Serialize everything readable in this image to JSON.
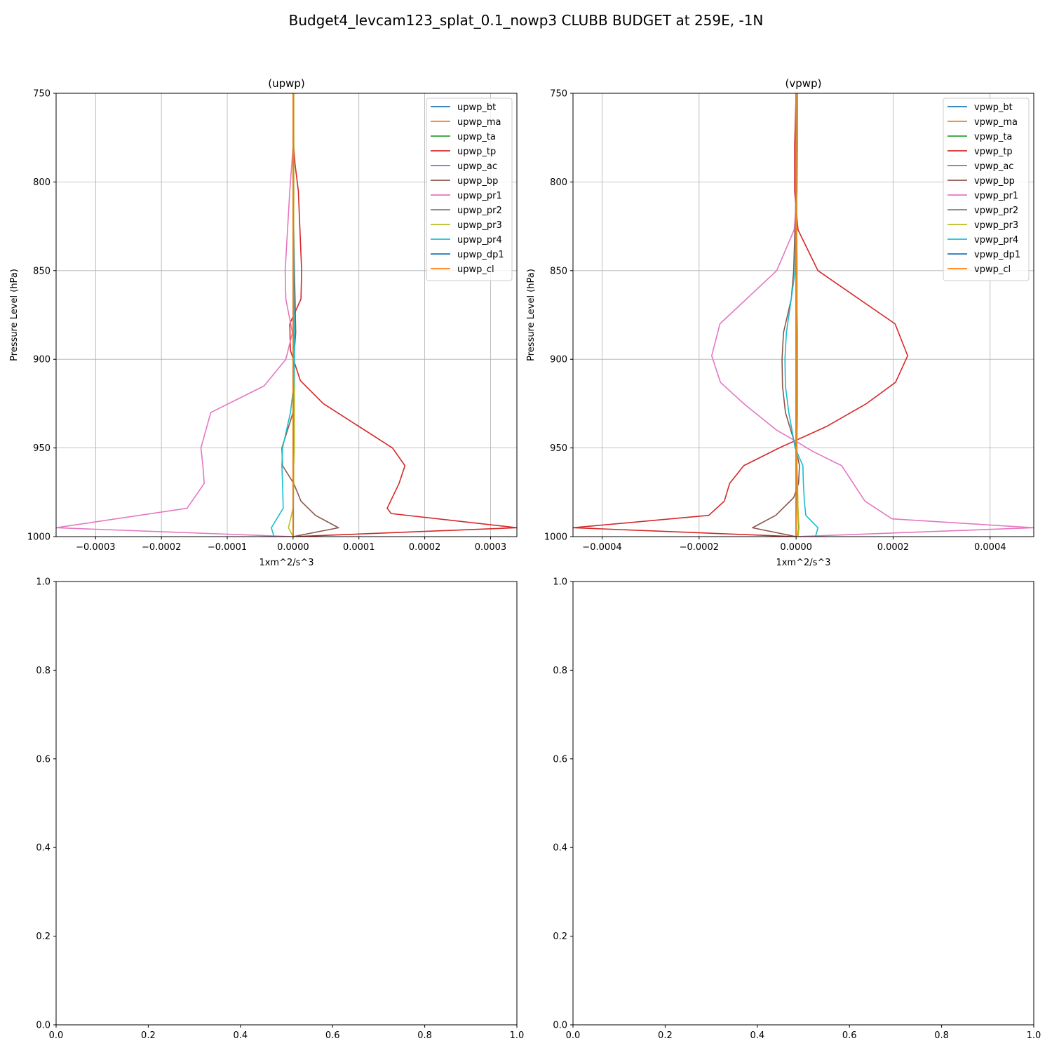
{
  "figure": {
    "suptitle": "Budget4_levcam123_splat_0.1_nowp3 CLUBB BUDGET at 259E, -1N"
  },
  "chart_data": [
    {
      "type": "line",
      "title": "(upwp)",
      "xlabel": "1xm^2/s^3",
      "ylabel": "Pressure Level (hPa)",
      "xlim": [
        -0.00036,
        0.00034
      ],
      "ylim": [
        1000,
        750
      ],
      "xticks": [
        -0.0003,
        -0.0002,
        -0.0001,
        0.0,
        0.0001,
        0.0002,
        0.0003
      ],
      "xtick_labels": [
        "−0.0003",
        "−0.0002",
        "−0.0001",
        "0.0000",
        "0.0001",
        "0.0002",
        "0.0003"
      ],
      "yticks": [
        750,
        800,
        850,
        900,
        950,
        1000
      ],
      "ytick_labels": [
        "750",
        "800",
        "850",
        "900",
        "950",
        "1000"
      ],
      "grid": true,
      "legend_position": "top-right",
      "series": [
        {
          "name": "upwp_bt",
          "color": "#1f77b4",
          "x": [
            0,
            0,
            0,
            0,
            0,
            0,
            0,
            0,
            0,
            0,
            0,
            0
          ],
          "y": [
            750,
            780,
            805,
            850,
            866,
            885,
            900,
            915,
            930,
            950,
            960,
            970
          ]
        },
        {
          "name": "upwp_ma",
          "color": "#ff7f0e",
          "x": [
            0.0,
            0.0,
            0.0,
            0.0,
            0.0,
            0.0,
            0.0,
            0.0,
            0.0,
            0.0,
            0.0,
            0.0,
            0.0,
            0.0,
            0.0
          ],
          "y": [
            750,
            780,
            805,
            850,
            866,
            885,
            900,
            915,
            930,
            950,
            960,
            970,
            984,
            995,
            1000
          ]
        },
        {
          "name": "upwp_ta",
          "color": "#2ca02c",
          "x": [
            5e-07,
            1e-06,
            1e-06,
            5e-07,
            1e-06,
            1.5e-06,
            2e-06,
            1e-06,
            5e-07,
            5e-07,
            5e-07,
            5e-07,
            5e-07,
            5e-07,
            0
          ],
          "y": [
            750,
            780,
            805,
            850,
            866,
            885,
            900,
            915,
            930,
            950,
            960,
            970,
            984,
            995,
            1000
          ]
        },
        {
          "name": "upwp_tp",
          "color": "#d62728",
          "x": [
            1e-06,
            1e-06,
            3e-06,
            8e-06,
            1.3e-05,
            1.2e-05,
            -5e-06,
            -4e-06,
            1.1e-05,
            4.6e-05,
            0.000151,
            0.00017,
            0.000161,
            0.000143,
            0.000149,
            0.00034,
            0.0
          ],
          "y": [
            750,
            780,
            790,
            805,
            850,
            866,
            880,
            895,
            912,
            925,
            950,
            960,
            970,
            984,
            987,
            995,
            1000
          ]
        },
        {
          "name": "upwp_ac",
          "color": "#9467bd",
          "x": [
            0,
            0,
            0,
            0,
            0,
            0,
            0,
            0,
            0,
            0,
            0,
            0,
            0,
            0,
            0
          ],
          "y": [
            750,
            780,
            805,
            850,
            866,
            885,
            900,
            915,
            930,
            950,
            960,
            970,
            984,
            995,
            1000
          ]
        },
        {
          "name": "upwp_bp",
          "color": "#8c564b",
          "x": [
            0,
            0,
            0,
            2e-06,
            3e-06,
            4e-06,
            1e-06,
            1e-06,
            0.0,
            -1.7e-05,
            -1.6e-05,
            1e-06,
            1.2e-05,
            3.4e-05,
            6.9e-05,
            0.0
          ],
          "y": [
            750,
            780,
            805,
            850,
            866,
            885,
            900,
            915,
            930,
            950,
            960,
            970,
            980,
            988,
            995,
            1000
          ]
        },
        {
          "name": "upwp_pr1",
          "color": "#e377c2",
          "x": [
            1e-06,
            0.0,
            -5e-06,
            -1.2e-05,
            -1.1e-05,
            -1e-06,
            -1.1e-05,
            -4.4e-05,
            -0.000125,
            -0.00014,
            -0.000137,
            -0.000135,
            -0.000161,
            -0.00036,
            0.0
          ],
          "y": [
            750,
            780,
            805,
            850,
            866,
            885,
            900,
            915,
            930,
            950,
            960,
            970,
            984,
            995,
            1000
          ]
        },
        {
          "name": "upwp_pr2",
          "color": "#7f7f7f",
          "x": [
            0,
            0,
            0,
            0,
            0,
            0,
            0,
            0,
            0,
            0,
            0,
            0,
            0,
            0,
            0
          ],
          "y": [
            750,
            780,
            805,
            850,
            866,
            885,
            900,
            915,
            930,
            950,
            960,
            970,
            984,
            995,
            1000
          ]
        },
        {
          "name": "upwp_pr3",
          "color": "#bcbd22",
          "x": [
            1e-06,
            1e-06,
            1e-06,
            1e-06,
            1e-06,
            2e-06,
            2e-06,
            2e-06,
            2e-06,
            2e-06,
            1e-06,
            1e-06,
            0.0,
            -7e-06,
            0.0
          ],
          "y": [
            750,
            780,
            805,
            850,
            866,
            885,
            900,
            915,
            930,
            950,
            960,
            970,
            984,
            995,
            1000
          ]
        },
        {
          "name": "upwp_pr4",
          "color": "#17becf",
          "x": [
            0.0,
            0.0,
            0.0,
            1e-06,
            1e-06,
            2e-06,
            2e-06,
            1e-06,
            -4e-06,
            -1.6e-05,
            -1.7e-05,
            -1.6e-05,
            -1.5e-05,
            -3.3e-05,
            -2.9e-05
          ],
          "y": [
            750,
            780,
            805,
            850,
            866,
            885,
            900,
            915,
            930,
            950,
            960,
            970,
            984,
            995,
            1000
          ]
        },
        {
          "name": "upwp_dp1",
          "color": "#1f77b4",
          "x": [
            0,
            0,
            0,
            0,
            0,
            0,
            0,
            0,
            0,
            0,
            0,
            0,
            0,
            0,
            0
          ],
          "y": [
            750,
            780,
            805,
            850,
            866,
            885,
            900,
            915,
            930,
            950,
            960,
            970,
            984,
            995,
            1000
          ]
        },
        {
          "name": "upwp_cl",
          "color": "#ff7f0e",
          "x": [
            0,
            0,
            0,
            0,
            0,
            0,
            0,
            0,
            0,
            0,
            0,
            0,
            0,
            0,
            0
          ],
          "y": [
            750,
            780,
            805,
            850,
            866,
            885,
            900,
            915,
            930,
            950,
            960,
            970,
            984,
            995,
            1000
          ]
        }
      ]
    },
    {
      "type": "line",
      "title": "(vpwp)",
      "xlabel": "1xm^2/s^3",
      "ylabel": "Pressure Level (hPa)",
      "xlim": [
        -0.00046,
        0.00049
      ],
      "ylim": [
        1000,
        750
      ],
      "xticks": [
        -0.0004,
        -0.0002,
        0.0,
        0.0002,
        0.0004
      ],
      "xtick_labels": [
        "−0.0004",
        "−0.0002",
        "0.0000",
        "0.0002",
        "0.0004"
      ],
      "yticks": [
        750,
        800,
        850,
        900,
        950,
        1000
      ],
      "ytick_labels": [
        "750",
        "800",
        "850",
        "900",
        "950",
        "1000"
      ],
      "grid": true,
      "legend_position": "top-right",
      "series": [
        {
          "name": "vpwp_bt",
          "color": "#1f77b4",
          "x": [
            0,
            0,
            0,
            0,
            0,
            0,
            0,
            0,
            0,
            0,
            0,
            0,
            0,
            0,
            0
          ],
          "y": [
            750,
            780,
            805,
            850,
            866,
            885,
            900,
            915,
            930,
            950,
            960,
            970,
            984,
            995,
            1000
          ]
        },
        {
          "name": "vpwp_ma",
          "color": "#ff7f0e",
          "x": [
            0,
            0,
            0,
            0,
            0,
            0,
            0,
            0,
            0,
            0,
            0,
            0,
            0,
            0,
            0
          ],
          "y": [
            750,
            780,
            805,
            850,
            866,
            885,
            900,
            915,
            930,
            950,
            960,
            970,
            984,
            995,
            1000
          ]
        },
        {
          "name": "vpwp_ta",
          "color": "#2ca02c",
          "x": [
            1e-06,
            1e-06,
            1e-06,
            2e-06,
            2e-06,
            2e-06,
            2e-06,
            2e-06,
            2e-06,
            1e-06,
            1e-06,
            2e-06,
            3e-06,
            5e-06,
            3e-06
          ],
          "y": [
            750,
            780,
            805,
            850,
            866,
            885,
            900,
            915,
            930,
            950,
            960,
            970,
            984,
            995,
            1000
          ]
        },
        {
          "name": "vpwp_tp",
          "color": "#d62728",
          "x": [
            0.0,
            -3e-06,
            -3e-06,
            4e-06,
            4.5e-05,
            0.000204,
            0.00023,
            0.000205,
            0.000145,
            6.2e-05,
            -3.5e-05,
            -0.000108,
            -0.000137,
            -0.000148,
            -0.00018,
            -0.00046,
            0.0
          ],
          "y": [
            750,
            780,
            805,
            827,
            850,
            880,
            898,
            913,
            925,
            938,
            950,
            960,
            970,
            980,
            988,
            995,
            1000
          ]
        },
        {
          "name": "vpwp_ac",
          "color": "#9467bd",
          "x": [
            0,
            0,
            0,
            0,
            0,
            0,
            0,
            0,
            0,
            0,
            0,
            0,
            0,
            0,
            0
          ],
          "y": [
            750,
            780,
            805,
            850,
            866,
            885,
            900,
            915,
            930,
            950,
            960,
            970,
            984,
            995,
            1000
          ]
        },
        {
          "name": "vpwp_bp",
          "color": "#8c564b",
          "x": [
            0,
            0,
            0,
            -5e-06,
            -1e-05,
            -2.6e-05,
            -2.9e-05,
            -2.8e-05,
            -2.2e-05,
            -2e-06,
            7e-06,
            5e-06,
            -5e-06,
            -4.2e-05,
            -9e-05,
            0.0
          ],
          "y": [
            750,
            780,
            805,
            850,
            866,
            885,
            900,
            915,
            930,
            948,
            960,
            970,
            978,
            988,
            995,
            1000
          ]
        },
        {
          "name": "vpwp_pr1",
          "color": "#e377c2",
          "x": [
            3e-06,
            3e-06,
            2e-06,
            -4e-06,
            -4e-05,
            -0.000157,
            -0.000174,
            -0.000156,
            -0.000108,
            -4e-05,
            -2e-06,
            3.5e-05,
            9.4e-05,
            0.000118,
            0.000142,
            0.000198,
            0.00049,
            0.0
          ],
          "y": [
            750,
            780,
            805,
            827,
            850,
            880,
            898,
            913,
            925,
            940,
            946,
            952,
            960,
            970,
            980,
            990,
            995,
            1000
          ]
        },
        {
          "name": "vpwp_pr2",
          "color": "#7f7f7f",
          "x": [
            0,
            0,
            0,
            0,
            0,
            0,
            0,
            0,
            0,
            0,
            0,
            0,
            0,
            0,
            0
          ],
          "y": [
            750,
            780,
            805,
            850,
            866,
            885,
            900,
            915,
            930,
            950,
            960,
            970,
            984,
            995,
            1000
          ]
        },
        {
          "name": "vpwp_pr3",
          "color": "#bcbd22",
          "x": [
            1e-06,
            1e-06,
            1e-06,
            2e-06,
            2e-06,
            3e-06,
            3e-06,
            3e-06,
            3e-06,
            2e-06,
            2e-06,
            3e-06,
            4e-06,
            6e-06,
            4e-06
          ],
          "y": [
            750,
            780,
            805,
            850,
            866,
            885,
            900,
            915,
            930,
            950,
            960,
            970,
            984,
            995,
            1000
          ]
        },
        {
          "name": "vpwp_pr4",
          "color": "#17becf",
          "x": [
            1e-06,
            1e-06,
            1e-06,
            -2e-06,
            -1e-05,
            -2e-05,
            -2.3e-05,
            -2.2e-05,
            -1.5e-05,
            -2e-06,
            1.4e-05,
            1.5e-05,
            1.7e-05,
            2e-05,
            4.5e-05,
            4e-05
          ],
          "y": [
            750,
            780,
            805,
            850,
            866,
            885,
            900,
            915,
            930,
            950,
            960,
            970,
            980,
            988,
            995,
            1000
          ]
        },
        {
          "name": "vpwp_dp1",
          "color": "#1f77b4",
          "x": [
            0,
            0,
            0,
            0,
            0,
            0,
            0,
            0,
            0,
            0,
            0,
            0,
            0,
            0,
            0
          ],
          "y": [
            750,
            780,
            805,
            850,
            866,
            885,
            900,
            915,
            930,
            950,
            960,
            970,
            984,
            995,
            1000
          ]
        },
        {
          "name": "vpwp_cl",
          "color": "#ff7f0e",
          "x": [
            0,
            0,
            0,
            0,
            0,
            0,
            0,
            0,
            0,
            0,
            0,
            0,
            0,
            0,
            0
          ],
          "y": [
            750,
            780,
            805,
            850,
            866,
            885,
            900,
            915,
            930,
            950,
            960,
            970,
            984,
            995,
            1000
          ]
        }
      ]
    },
    {
      "type": "line",
      "title": "",
      "xlim": [
        0.0,
        1.0
      ],
      "ylim": [
        0.0,
        1.0
      ],
      "xticks": [
        0.0,
        0.2,
        0.4,
        0.6,
        0.8,
        1.0
      ],
      "xtick_labels": [
        "0.0",
        "0.2",
        "0.4",
        "0.6",
        "0.8",
        "1.0"
      ],
      "yticks": [
        0.0,
        0.2,
        0.4,
        0.6,
        0.8,
        1.0
      ],
      "ytick_labels": [
        "0.0",
        "0.2",
        "0.4",
        "0.6",
        "0.8",
        "1.0"
      ],
      "grid": false,
      "series": []
    },
    {
      "type": "line",
      "title": "",
      "xlim": [
        0.0,
        1.0
      ],
      "ylim": [
        0.0,
        1.0
      ],
      "xticks": [
        0.0,
        0.2,
        0.4,
        0.6,
        0.8,
        1.0
      ],
      "xtick_labels": [
        "0.0",
        "0.2",
        "0.4",
        "0.6",
        "0.8",
        "1.0"
      ],
      "yticks": [
        0.0,
        0.2,
        0.4,
        0.6,
        0.8,
        1.0
      ],
      "ytick_labels": [
        "0.0",
        "0.2",
        "0.4",
        "0.6",
        "0.8",
        "1.0"
      ],
      "grid": false,
      "series": []
    }
  ]
}
